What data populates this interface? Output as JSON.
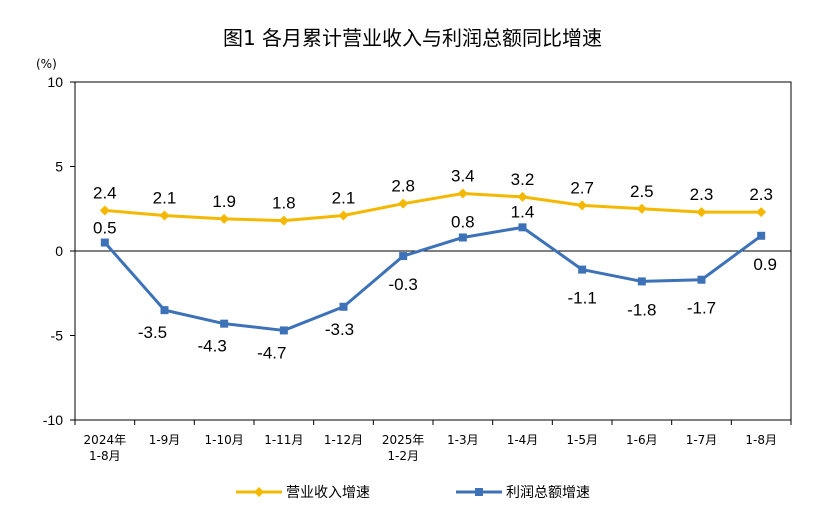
{
  "chart_data": {
    "type": "line",
    "title": "图1  各月累计营业收入与利润总额同比增速",
    "ylabel": "(%)",
    "ylim": [
      -10,
      10
    ],
    "yticks": [
      "10",
      "5",
      "0",
      "-5",
      "-10"
    ],
    "categories": [
      [
        "2024年",
        "1-8月"
      ],
      [
        "1-9月"
      ],
      [
        "1-10月"
      ],
      [
        "1-11月"
      ],
      [
        "1-12月"
      ],
      [
        "2025年",
        "1-2月"
      ],
      [
        "1-3月"
      ],
      [
        "1-4月"
      ],
      [
        "1-5月"
      ],
      [
        "1-6月"
      ],
      [
        "1-7月"
      ],
      [
        "1-8月"
      ]
    ],
    "series": [
      {
        "name": "营业收入增速",
        "color": "#f5b800",
        "marker": "diamond",
        "values": [
          2.4,
          2.1,
          1.9,
          1.8,
          2.1,
          2.8,
          3.4,
          3.2,
          2.7,
          2.5,
          2.3,
          2.3
        ],
        "labels": [
          "2.4",
          "2.1",
          "1.9",
          "1.8",
          "2.1",
          "2.8",
          "3.4",
          "3.2",
          "2.7",
          "2.5",
          "2.3",
          "2.3"
        ]
      },
      {
        "name": "利润总额增速",
        "color": "#3d72b8",
        "marker": "square",
        "values": [
          0.5,
          -3.5,
          -4.3,
          -4.7,
          -3.3,
          -0.3,
          0.8,
          1.4,
          -1.1,
          -1.8,
          -1.7,
          0.9
        ],
        "labels": [
          "0.5",
          "-3.5",
          "-4.3",
          "-4.7",
          "-3.3",
          "-0.3",
          "0.8",
          "1.4",
          "-1.1",
          "-1.8",
          "-1.7",
          "0.9"
        ]
      }
    ],
    "grid": false,
    "legend": "bottom"
  }
}
